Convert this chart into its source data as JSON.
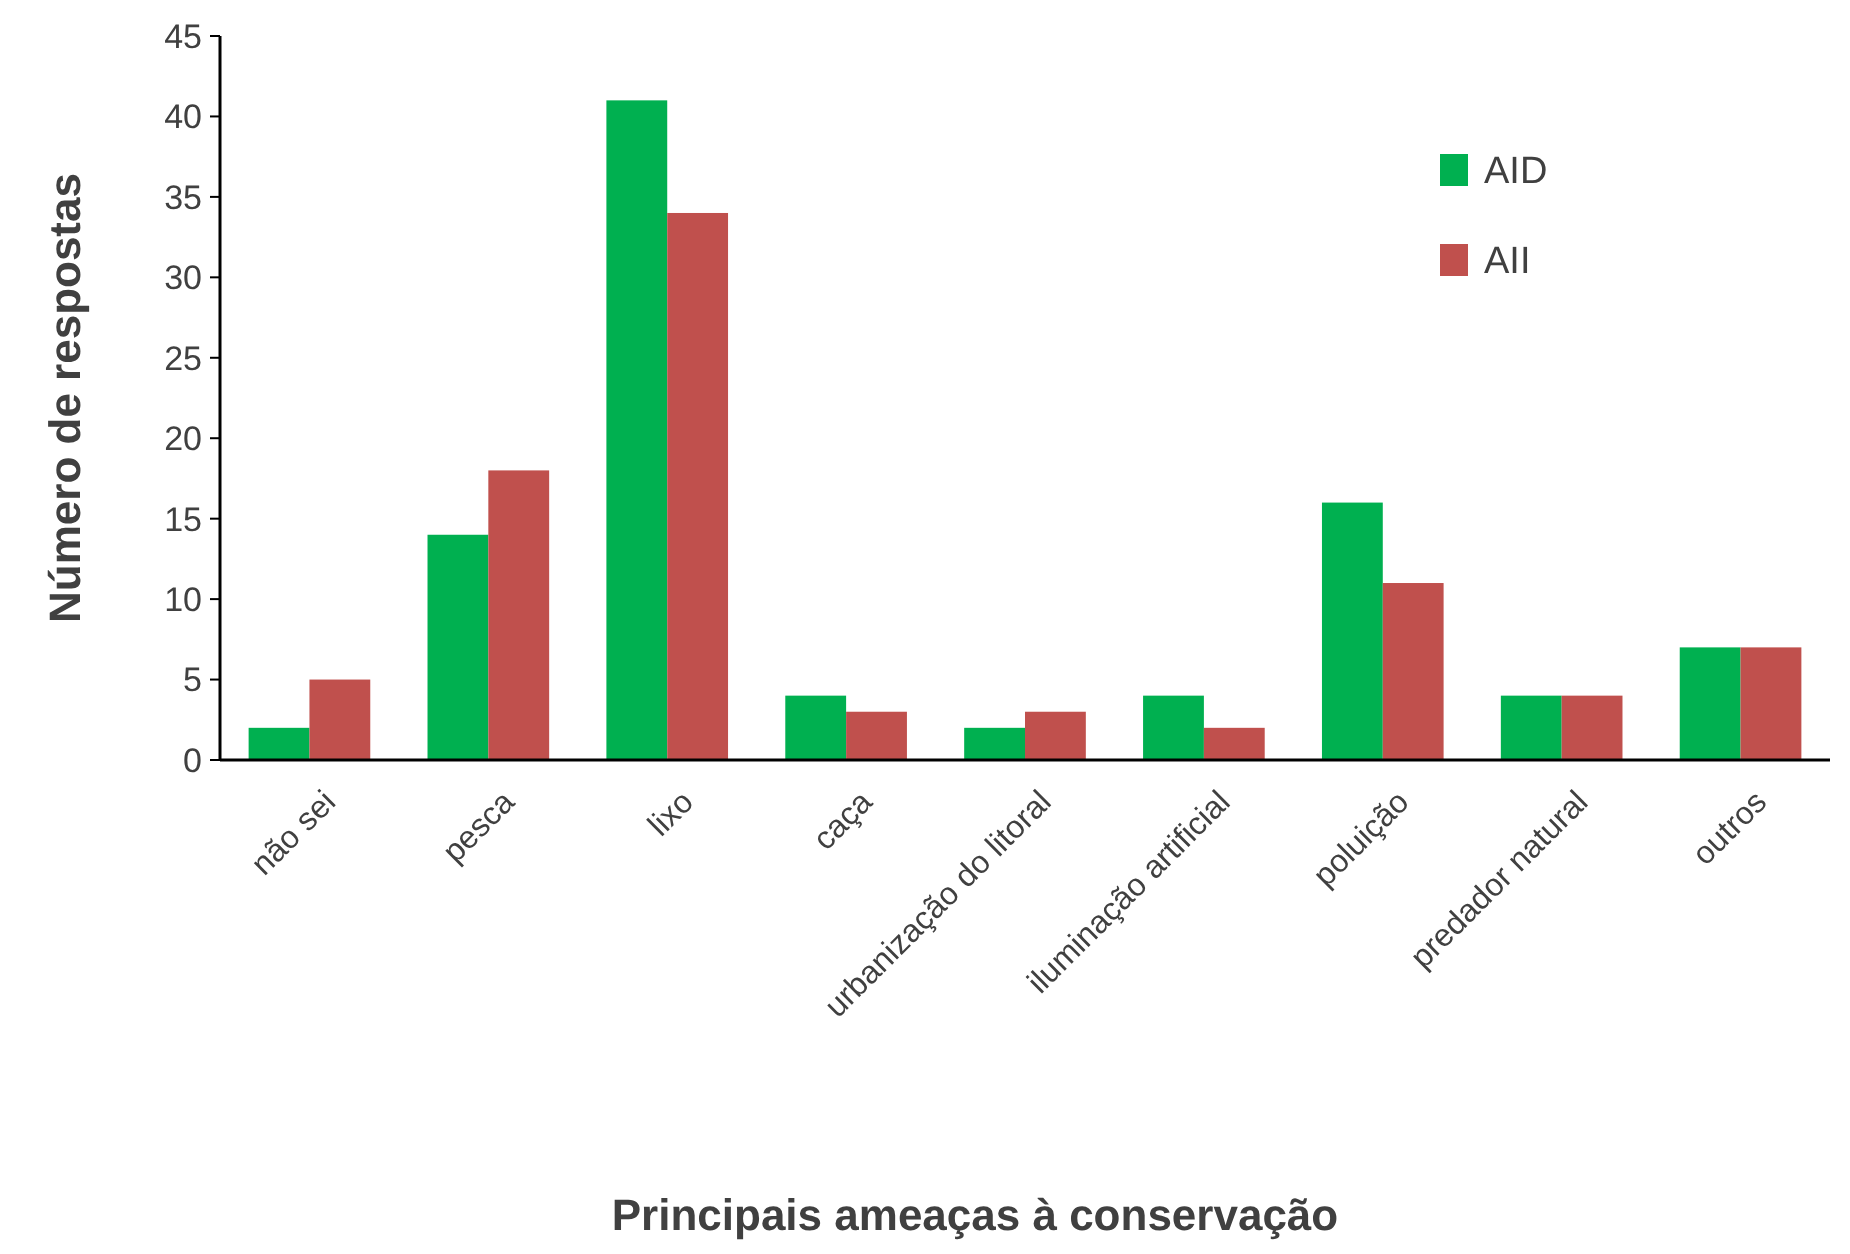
{
  "chart_data": {
    "type": "bar",
    "xlabel": "Principais ameaças à conservação",
    "ylabel": "Número de respostas",
    "categories": [
      "não sei",
      "pesca",
      "lixo",
      "caça",
      "urbanização do litoral",
      "iluminação artificial",
      "poluição",
      "predador natural",
      "outros"
    ],
    "series": [
      {
        "name": "AID",
        "color": "#00b050",
        "values": [
          2,
          14,
          41,
          4,
          2,
          4,
          16,
          4,
          7
        ]
      },
      {
        "name": "AII",
        "color": "#c0504d",
        "values": [
          5,
          18,
          34,
          3,
          3,
          2,
          11,
          4,
          7
        ]
      }
    ],
    "ylim": [
      0,
      45
    ],
    "yticks": [
      0,
      5,
      10,
      15,
      20,
      25,
      30,
      35,
      40,
      45
    ],
    "grid": false,
    "legend": "top right"
  }
}
